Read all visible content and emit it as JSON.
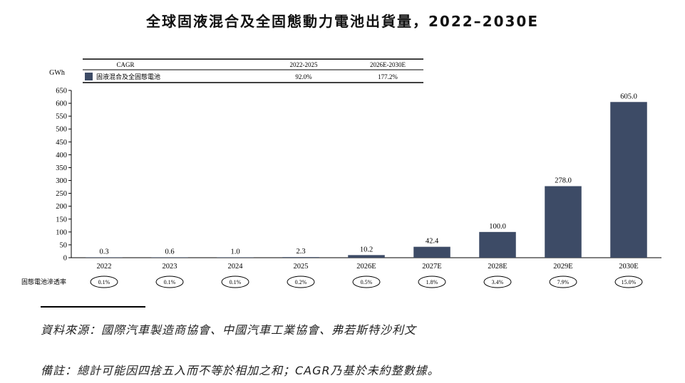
{
  "title": "全球固液混合及全固態動力電池出貨量，2022–2030E",
  "chart_data": {
    "type": "bar",
    "title": "全球固液混合及全固態動力電池出貨量，2022–2030E",
    "ylabel": "GWh",
    "ylim": [
      0,
      650
    ],
    "yticks": [
      0,
      50,
      100,
      150,
      200,
      250,
      300,
      350,
      400,
      450,
      500,
      550,
      600,
      650
    ],
    "categories": [
      "2022",
      "2023",
      "2024",
      "2025",
      "2026E",
      "2027E",
      "2028E",
      "2029E",
      "2030E"
    ],
    "values": [
      0.3,
      0.6,
      1.0,
      2.3,
      10.2,
      42.4,
      100.0,
      278.0,
      605.0
    ],
    "value_labels": [
      "0.3",
      "0.6",
      "1.0",
      "2.3",
      "10.2",
      "42.4",
      "100.0",
      "278.0",
      "605.0"
    ],
    "series_name": "固液混合及全固態電池",
    "bar_color": "#3d4b66",
    "cagr_table": {
      "header": [
        "CAGR",
        "2022-2025",
        "2026E-2030E"
      ],
      "row": [
        "固液混合及全固態電池",
        "92.0%",
        "177.2%"
      ]
    },
    "penetration_label": "固態電池滲透率",
    "penetration": [
      "0.1%",
      "0.1%",
      "0.1%",
      "0.2%",
      "0.5%",
      "1.8%",
      "3.4%",
      "7.9%",
      "15.0%"
    ]
  },
  "source": "資料來源：國際汽車製造商協會、中國汽車工業協會、弗若斯特沙利文",
  "note": "備註：總計可能因四捨五入而不等於相加之和；CAGR乃基於未約整數據。"
}
